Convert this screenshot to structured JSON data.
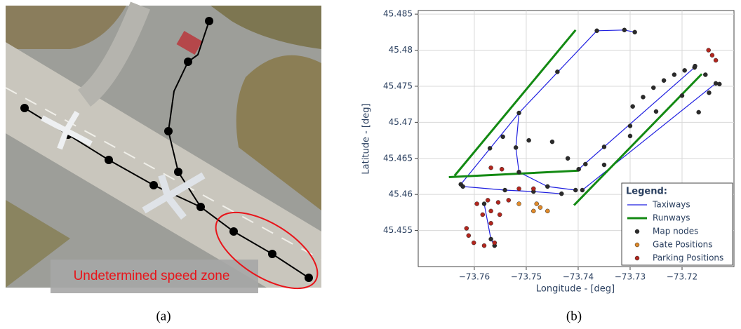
{
  "figure_a": {
    "label": "(a)",
    "annotation": "Undetermined speed zone"
  },
  "chart_data": {
    "type": "map",
    "panel_label": "(b)",
    "x_label": "Longitude - [deg]",
    "y_label": "Latitude - [deg]",
    "xlim": [
      -73.7708,
      -73.71
    ],
    "ylim": [
      45.45,
      45.4855
    ],
    "xticks": [
      {
        "value": -73.76,
        "label": "−73.76"
      },
      {
        "value": -73.75,
        "label": "−73.75"
      },
      {
        "value": -73.74,
        "label": "−73.74"
      },
      {
        "value": -73.73,
        "label": "−73.73"
      },
      {
        "value": -73.72,
        "label": "−73.72"
      }
    ],
    "yticks": [
      45.455,
      45.46,
      45.465,
      45.47,
      45.475,
      45.48,
      45.485
    ],
    "grid": true,
    "legend_title": "Legend:",
    "legend_position": "lower right",
    "series": [
      {
        "name": "Taxiways",
        "mode": "line",
        "color": "#1f1fe0",
        "x": [
          -73.7626,
          -73.7514,
          -73.7364,
          -73.7311,
          -73.7291,
          null,
          -73.7392,
          -73.7135,
          null,
          -73.7514,
          -73.752,
          -73.7514,
          -73.7459,
          -73.7405,
          null,
          -73.7399,
          -73.7176,
          null,
          -73.7622,
          -73.7541,
          -73.7486,
          -73.7432,
          null,
          -73.7581,
          -73.7568,
          -73.7561
        ],
        "y": [
          45.4614,
          45.4713,
          45.4827,
          45.4828,
          45.4825,
          null,
          45.4606,
          45.4754,
          null,
          45.4713,
          45.4665,
          45.4631,
          45.4611,
          45.4606,
          null,
          45.4635,
          45.4776,
          null,
          45.4611,
          45.4606,
          45.4604,
          45.4601,
          null,
          45.4587,
          45.4538,
          45.4529
        ]
      },
      {
        "name": "Runways",
        "mode": "line",
        "color": "#138a13",
        "x": [
          -73.7638,
          -73.7405,
          null,
          -73.7649,
          -73.7399,
          null,
          -73.7408,
          -73.7162
        ],
        "y": [
          45.4626,
          45.4828,
          null,
          45.4624,
          45.4633,
          null,
          45.4585,
          45.4767
        ]
      },
      {
        "name": "Map nodes",
        "mode": "marker",
        "color": "#2b2b2b",
        "x": [
          -73.7626,
          -73.757,
          -73.7514,
          -73.744,
          -73.7364,
          -73.7311,
          -73.7291,
          -73.7392,
          -73.735,
          -73.73,
          -73.725,
          -73.72,
          -73.7135,
          -73.752,
          -73.7514,
          -73.7459,
          -73.7405,
          -73.7399,
          -73.735,
          -73.73,
          -73.7176,
          -73.7622,
          -73.7541,
          -73.7486,
          -73.7432,
          -73.7581,
          -73.7568,
          -73.7561,
          -73.7295,
          -73.7275,
          -73.7255,
          -73.7235,
          -73.7215,
          -73.7195,
          -73.7175,
          -73.7155,
          -73.7168,
          -73.7148,
          -73.7128,
          -73.7545,
          -73.7495,
          -73.745,
          -73.742,
          -73.7386
        ],
        "y": [
          45.4614,
          45.4664,
          45.4713,
          45.477,
          45.4827,
          45.4828,
          45.4825,
          45.4606,
          45.4641,
          45.4681,
          45.4715,
          45.4737,
          45.4754,
          45.4665,
          45.4631,
          45.4611,
          45.4606,
          45.4635,
          45.4666,
          45.4695,
          45.4776,
          45.4611,
          45.4606,
          45.4604,
          45.4601,
          45.4587,
          45.4538,
          45.4529,
          45.4722,
          45.4735,
          45.4748,
          45.4758,
          45.4766,
          45.4772,
          45.4778,
          45.4766,
          45.4714,
          45.4741,
          45.4753,
          45.468,
          45.4675,
          45.4673,
          45.465,
          45.4642
        ]
      },
      {
        "name": "Gate Positions",
        "mode": "marker",
        "color": "#e08a2a",
        "x": [
          -73.7473,
          -73.7486,
          -73.748,
          -73.7514,
          -73.7459
        ],
        "y": [
          45.4582,
          45.4577,
          45.4587,
          45.4587,
          45.4577
        ]
      },
      {
        "name": "Parking Positions",
        "mode": "marker",
        "color": "#b3261e",
        "x": [
          -73.7595,
          -73.7574,
          -73.7554,
          -73.7534,
          -73.7615,
          -73.7611,
          -73.7601,
          -73.7581,
          -73.7561,
          -73.7584,
          -73.7568,
          -73.7551,
          -73.7568,
          -73.7149,
          -73.7142,
          -73.7135,
          -73.7568,
          -73.7547,
          -73.7514,
          -73.7486
        ],
        "y": [
          45.4587,
          45.4592,
          45.4589,
          45.4592,
          45.4553,
          45.4543,
          45.4533,
          45.4529,
          45.4533,
          45.4572,
          45.4577,
          45.4572,
          45.456,
          45.48,
          45.4793,
          45.4786,
          45.4637,
          45.4635,
          45.4608,
          45.4608
        ]
      }
    ]
  }
}
